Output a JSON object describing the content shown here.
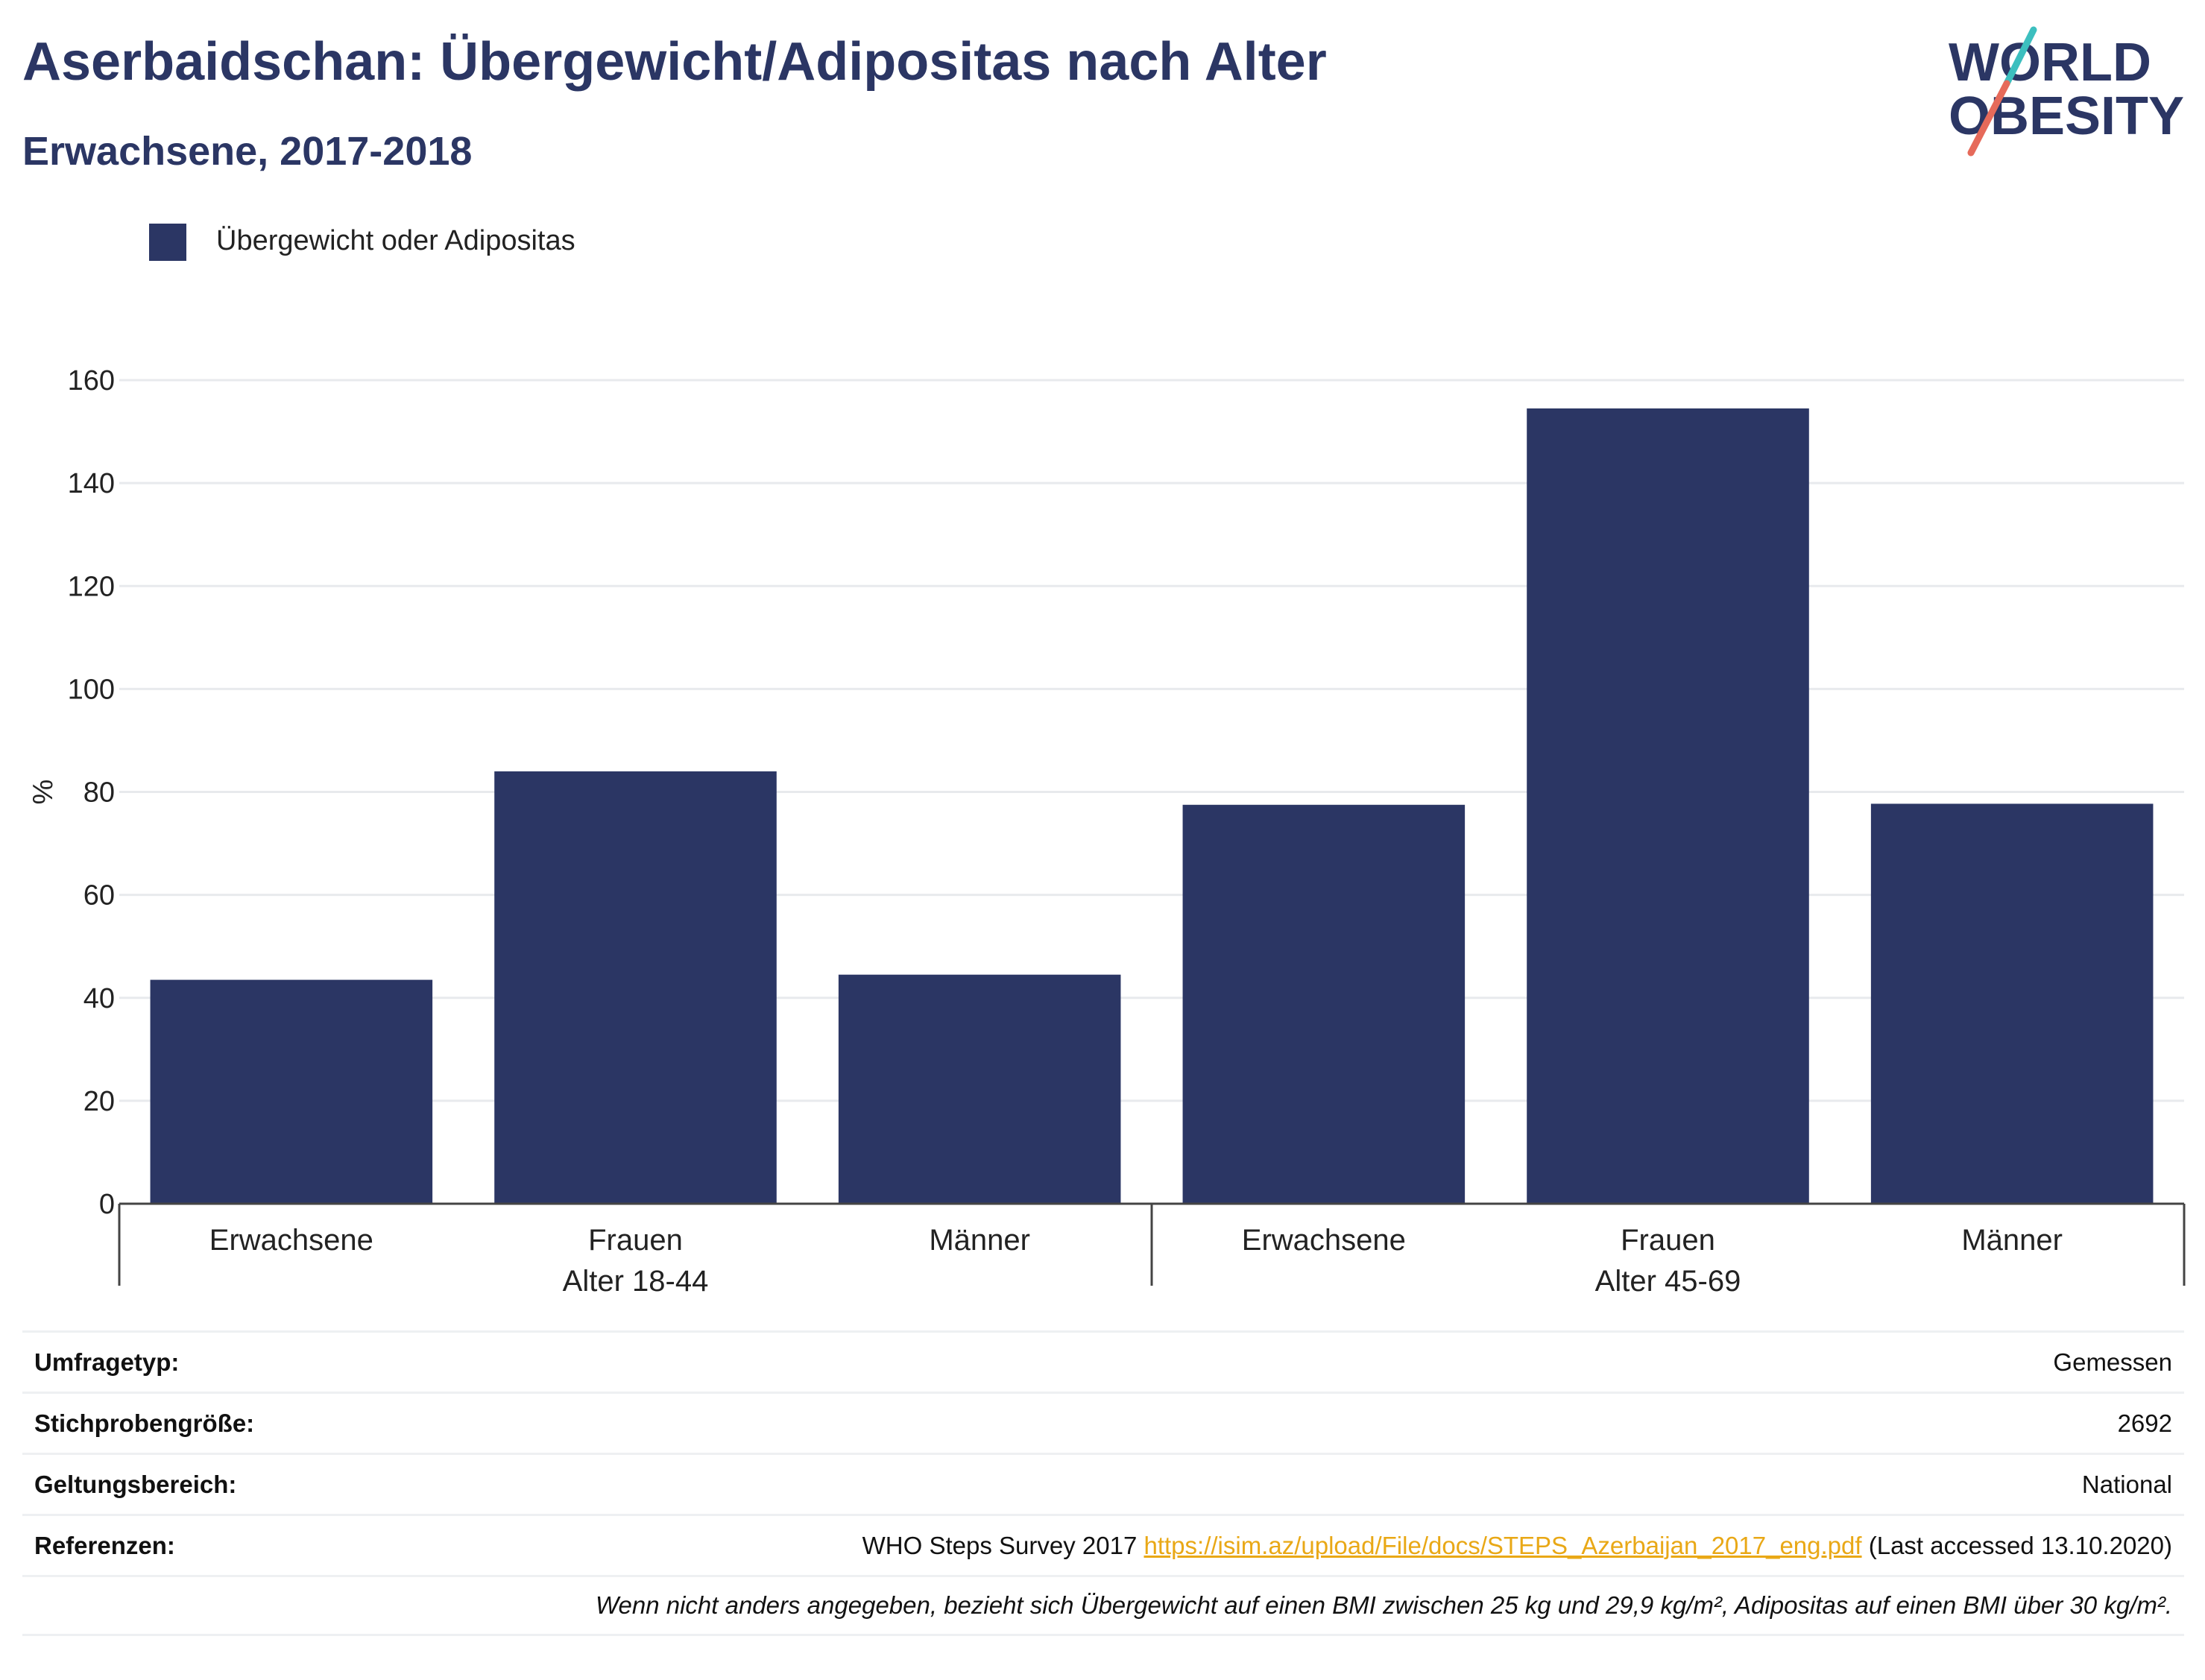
{
  "header": {
    "title": "Aserbaidschan: Übergewicht/Adipositas nach Alter",
    "subtitle": "Erwachsene, 2017-2018"
  },
  "logo": {
    "line1": "WORLD",
    "line2": "OBESITY",
    "accent_teal": "#3cbfbf",
    "accent_red": "#e66a5a"
  },
  "colors": {
    "bar": "#2b3664",
    "title": "#2b3664",
    "link": "#e9a816"
  },
  "chart_data": {
    "type": "bar",
    "title": "",
    "ylabel": "%",
    "ylim": [
      0,
      160
    ],
    "yticks": [
      0,
      20,
      40,
      60,
      80,
      100,
      120,
      140,
      160
    ],
    "grid": true,
    "legend_position": "top-left",
    "legend": [
      "Übergewicht oder Adipositas"
    ],
    "groups": [
      {
        "label": "Alter 18-44",
        "categories": [
          "Erwachsene",
          "Frauen",
          "Männer"
        ]
      },
      {
        "label": "Alter 45-69",
        "categories": [
          "Erwachsene",
          "Frauen",
          "Männer"
        ]
      }
    ],
    "series": [
      {
        "name": "Übergewicht oder Adipositas",
        "values": [
          43.5,
          84,
          44.5,
          77.5,
          154.5,
          77.7
        ]
      }
    ]
  },
  "info": {
    "survey_type_label": "Umfragetyp:",
    "survey_type_value": "Gemessen",
    "sample_size_label": "Stichprobengröße:",
    "sample_size_value": "2692",
    "scope_label": "Geltungsbereich:",
    "scope_value": "National",
    "references_label": "Referenzen:",
    "references_prefix": "WHO Steps Survey 2017",
    "references_link": "https://isim.az/upload/File/docs/STEPS_Azerbaijan_2017_eng.pdf",
    "references_suffix": "(Last accessed 13.10.2020)",
    "footnote": "Wenn nicht anders angegeben, bezieht sich Übergewicht auf einen BMI zwischen 25 kg und 29,9 kg/m², Adipositas auf einen BMI über 30 kg/m²."
  }
}
